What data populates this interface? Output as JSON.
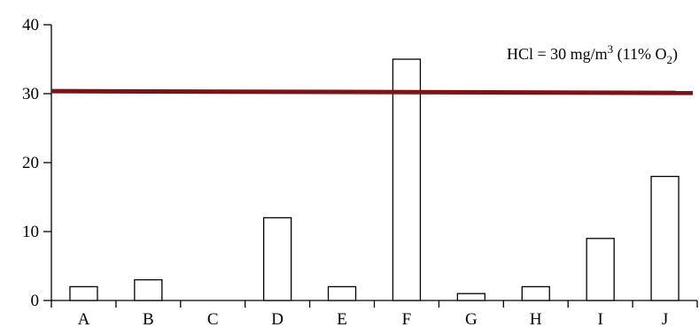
{
  "chart_data": {
    "type": "bar",
    "categories": [
      "A",
      "B",
      "C",
      "D",
      "E",
      "F",
      "G",
      "H",
      "I",
      "J"
    ],
    "values": [
      2,
      3,
      0,
      12,
      2,
      35,
      1,
      2,
      9,
      18
    ],
    "ylim": [
      0,
      40
    ],
    "yticks": [
      0,
      10,
      20,
      30,
      40
    ],
    "grid": false,
    "bar_fill": "#ffffff",
    "bar_stroke": "#000000",
    "reference_line": {
      "value": 30.3,
      "color": "#7b1416",
      "label_main": "HCl = 30 mg/m",
      "label_sup": "3",
      "label_mid": " (11% O",
      "label_sub": "2",
      "label_end": ")"
    }
  }
}
